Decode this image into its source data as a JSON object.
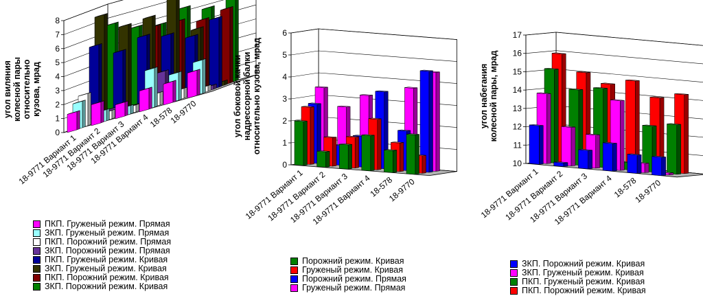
{
  "chart_data": [
    {
      "type": "bar",
      "view": "3d",
      "ylabel": "угол виляния колесной пары относительно кузова, мрад",
      "ylim": [
        0,
        8
      ],
      "yticks": [
        "0",
        "1",
        "2",
        "3",
        "4",
        "5",
        "6",
        "7",
        "8"
      ],
      "categories": [
        "18-9771 Вариант 1",
        "18-9771 Вариант 2",
        "18-9771 Вариант 3",
        "18-9771 Вариант 4",
        "18-578",
        "18-9770"
      ],
      "legend_position": "bottom",
      "series": [
        {
          "name": "ПКП. Груженый режим. Прямая",
          "color": "#ff00ff",
          "values": [
            1.3,
            1.5,
            1.0,
            1.5,
            1.5,
            1.8
          ]
        },
        {
          "name": "ЗКП. Груженый режим. Прямая",
          "color": "#99ffff",
          "values": [
            1.9,
            0.8,
            0.6,
            2.8,
            2.0,
            2.4
          ]
        },
        {
          "name": "ПКП. Порожний режим. Прямая",
          "color": "#ffffff",
          "values": [
            2.3,
            0.6,
            0.5,
            0.9,
            0.7,
            0.4
          ]
        },
        {
          "name": "ЗКП. Порожний режим. Прямая",
          "color": "#663399",
          "values": [
            0.4,
            0.7,
            0.5,
            2.3,
            0.5,
            0.3
          ]
        },
        {
          "name": "ПКП. Груженый режим. Кривая",
          "color": "#000099",
          "values": [
            5.5,
            4.6,
            5.2,
            4.8,
            4.2,
            5.0
          ]
        },
        {
          "name": "ЗКП. Груженый режим. Кривая",
          "color": "#333300",
          "values": [
            7.5,
            6.3,
            6.4,
            7.6,
            4.6,
            0.3
          ]
        },
        {
          "name": "ПКП. Порожний режим. Кривая",
          "color": "#800000",
          "values": [
            0.3,
            0.3,
            5.6,
            5.5,
            5.1,
            5.4
          ]
        },
        {
          "name": "ЗКП. Порожний режим. Кривая",
          "color": "#008000",
          "values": [
            6.6,
            5.9,
            5.6,
            6.3,
            5.8,
            6.4
          ]
        }
      ]
    },
    {
      "type": "bar",
      "view": "3d",
      "ylabel": "угол боковой качки надрессорной балки относительно кузова, мрад",
      "ylim": [
        0,
        6
      ],
      "yticks": [
        "0",
        "1",
        "2",
        "3",
        "4",
        "5",
        "6"
      ],
      "categories": [
        "18-9771 Вариант 1",
        "18-9771 Вариант 2",
        "18-9771 Вариант 3",
        "18-9771 Вариант 4",
        "18-578",
        "18-9770"
      ],
      "legend_position": "bottom",
      "series": [
        {
          "name": "Порожний режим. Кривая",
          "color": "#008000",
          "values": [
            2.0,
            0.7,
            1.1,
            1.6,
            1.0,
            1.8
          ]
        },
        {
          "name": "Груженый режим. Кривая",
          "color": "#ff0000",
          "values": [
            2.6,
            1.3,
            1.4,
            2.3,
            1.3,
            0.8
          ]
        },
        {
          "name": "Порожний режим. Прямая",
          "color": "#0000ff",
          "values": [
            2.7,
            0.9,
            1.4,
            3.5,
            1.8,
            4.6
          ]
        },
        {
          "name": "Груженый режим. Прямая",
          "color": "#ff00ff",
          "values": [
            3.4,
            2.6,
            3.2,
            0.6,
            3.7,
            4.5
          ]
        }
      ]
    },
    {
      "type": "bar",
      "view": "3d",
      "ylabel": "угол набегания колесной пары, мрад",
      "ylim": [
        10,
        17
      ],
      "yticks": [
        "10",
        "11",
        "12",
        "13",
        "14",
        "15",
        "16",
        "17"
      ],
      "categories": [
        "18-9771 Вариант 1",
        "18-9771 Вариант 2",
        "18-9771 Вариант 3",
        "18-9771 Вариант 4",
        "18-578",
        "18-9770"
      ],
      "legend_position": "bottom",
      "series": [
        {
          "name": "ЗКП. Порожний режим. Кривая",
          "color": "#0000ff",
          "values": [
            12.1,
            10.2,
            11.0,
            11.5,
            11.0,
            11.0
          ]
        },
        {
          "name": "ЗКП. Груженый режим. Кривая",
          "color": "#ff00ff",
          "values": [
            13.8,
            12.1,
            11.8,
            13.8,
            10.5,
            10.1
          ]
        },
        {
          "name": "ПКП. Груженый режим. Кривая",
          "color": "#008000",
          "values": [
            15.1,
            14.1,
            14.3,
            10.4,
            12.5,
            12.7
          ]
        },
        {
          "name": "ПКП. Порожний режим. Кривая",
          "color": "#ff0000",
          "values": [
            15.9,
            15.0,
            14.5,
            14.8,
            14.0,
            14.3
          ]
        }
      ]
    }
  ]
}
